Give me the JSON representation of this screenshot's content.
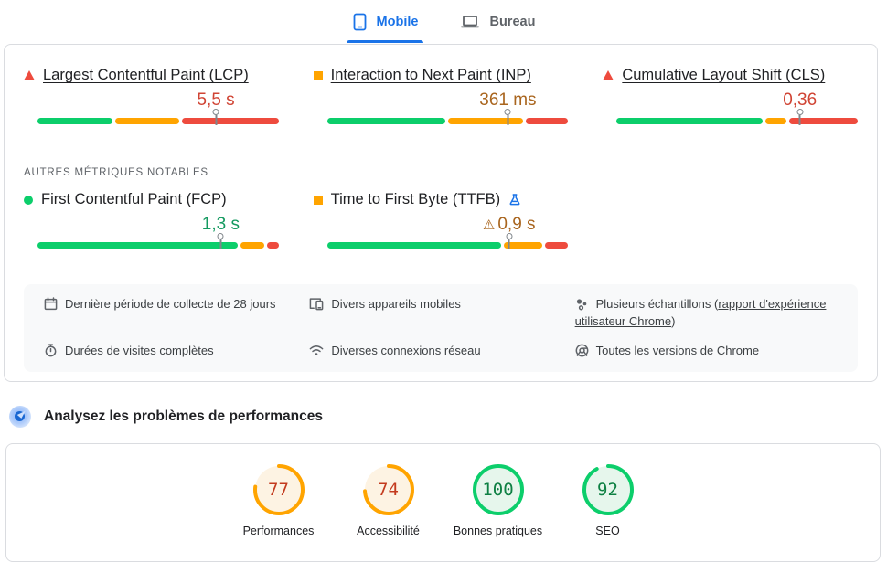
{
  "colors": {
    "blue": "#1a73e8",
    "text": "#202124",
    "muted": "#5f6368",
    "body-text": "#3c4043",
    "border": "#dadce0",
    "strip-bg": "#f8f9fa",
    "bar-green": "#0cce6b",
    "bar-orange": "#ffa400",
    "bar-red": "#ee4b3e",
    "score-orange": "#ffa400",
    "score-orange-bg": "#fdf3e3",
    "score-orange-text": "#c33a1e",
    "score-green": "#0cce6b",
    "score-green-bg": "#e6f6ec",
    "score-green-text": "#0e8043"
  },
  "tabs": {
    "mobile": {
      "label": "Mobile",
      "icon": "smartphone-icon",
      "active": true
    },
    "desktop": {
      "label": "Bureau",
      "icon": "laptop-icon",
      "active": false
    }
  },
  "cwv": {
    "section_label": "AUTRES MÉTRIQUES NOTABLES",
    "metrics": {
      "lcp": {
        "title": "Largest Contentful Paint (LCP)",
        "value": "5,5 s",
        "icon": "triangle-red",
        "value_color": "#d04434",
        "segments": [
          32,
          27,
          41
        ],
        "marker_pct": 74
      },
      "inp": {
        "title": "Interaction to Next Paint (INP)",
        "value": "361 ms",
        "icon": "square-orange",
        "value_color": "#a9651e",
        "segments": [
          50,
          32,
          18
        ],
        "marker_pct": 75
      },
      "cls": {
        "title": "Cumulative Layout Shift (CLS)",
        "value": "0,36",
        "icon": "triangle-red",
        "value_color": "#d04434",
        "segments": [
          62,
          9,
          29
        ],
        "marker_pct": 76
      },
      "fcp": {
        "title": "First Contentful Paint (FCP)",
        "value": "1,3 s",
        "icon": "circle-green",
        "value_color": "#149a60",
        "segments": [
          85,
          10,
          5
        ],
        "marker_pct": 76
      },
      "ttfb": {
        "title": "Time to First Byte (TTFB)",
        "value": "0,9 s",
        "value_prefix": "⚠",
        "icon": "square-orange",
        "value_color": "#a9651e",
        "segments": [
          74,
          16,
          10
        ],
        "marker_pct": 75.5
      }
    }
  },
  "info_bar": {
    "collection_period": {
      "icon": "calendar-icon",
      "text": "Dernière période de collecte de 28 jours"
    },
    "devices": {
      "icon": "devices-icon",
      "text": "Divers appareils mobiles"
    },
    "samples": {
      "icon": "samples-icon",
      "text_before": "Plusieurs échantillons (",
      "link": "rapport d'expérience utilisateur Chrome",
      "text_after": ")"
    },
    "visit_durations": {
      "icon": "stopwatch-icon",
      "text": "Durées de visites complètes"
    },
    "connections": {
      "icon": "wifi-icon",
      "text": "Diverses connexions réseau"
    },
    "chrome_versions": {
      "icon": "chrome-icon",
      "text": "Toutes les versions de Chrome"
    }
  },
  "analyze": {
    "title": "Analysez les problèmes de performances",
    "icon": "lighthouse-icon"
  },
  "scores": {
    "items": [
      {
        "label": "Performances",
        "value": "77",
        "pct": 77,
        "tone": "average"
      },
      {
        "label": "Accessibilité",
        "value": "74",
        "pct": 74,
        "tone": "average"
      },
      {
        "label": "Bonnes pratiques",
        "value": "100",
        "pct": 100,
        "tone": "pass"
      },
      {
        "label": "SEO",
        "value": "92",
        "pct": 92,
        "tone": "pass"
      }
    ]
  }
}
